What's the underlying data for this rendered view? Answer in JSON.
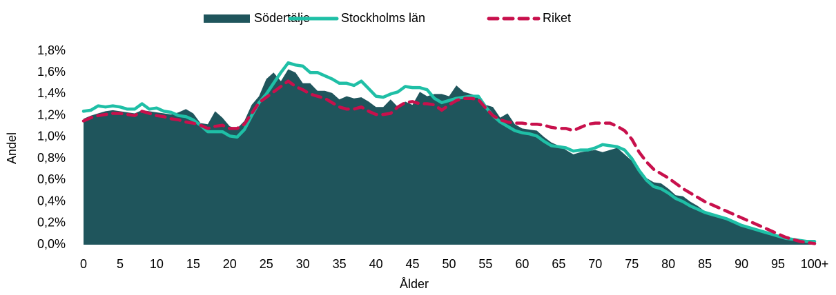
{
  "chart_data": {
    "type": "line",
    "x_label": "Ålder",
    "y_label": "Andel",
    "categories": [
      "0",
      null,
      null,
      null,
      null,
      "5",
      null,
      null,
      null,
      null,
      "10",
      null,
      null,
      null,
      null,
      "15",
      null,
      null,
      null,
      null,
      "20",
      null,
      null,
      null,
      null,
      "25",
      null,
      null,
      null,
      null,
      "30",
      null,
      null,
      null,
      null,
      "35",
      null,
      null,
      null,
      null,
      "40",
      null,
      null,
      null,
      null,
      "45",
      null,
      null,
      null,
      null,
      "50",
      null,
      null,
      null,
      null,
      "55",
      null,
      null,
      null,
      null,
      "60",
      null,
      null,
      null,
      null,
      "65",
      null,
      null,
      null,
      null,
      "70",
      null,
      null,
      null,
      null,
      "75",
      null,
      null,
      null,
      null,
      "80",
      null,
      null,
      null,
      null,
      "85",
      null,
      null,
      null,
      null,
      "90",
      null,
      null,
      null,
      null,
      "95",
      null,
      null,
      null,
      null,
      "100+"
    ],
    "ylim": [
      0,
      1.8
    ],
    "yticks": [
      {
        "value": 0,
        "label": "0,0%"
      },
      {
        "value": 0.2,
        "label": "0,2%"
      },
      {
        "value": 0.4,
        "label": "0,4%"
      },
      {
        "value": 0.6,
        "label": "0,6%"
      },
      {
        "value": 0.8,
        "label": "0,8%"
      },
      {
        "value": 1.0,
        "label": "1,0%"
      },
      {
        "value": 1.2,
        "label": "1,2%"
      },
      {
        "value": 1.4,
        "label": "1,4%"
      },
      {
        "value": 1.6,
        "label": "1,6%"
      },
      {
        "value": 1.8,
        "label": "1,8%"
      }
    ],
    "grid": false,
    "legend": "top",
    "series": [
      {
        "name": "Södertälje",
        "style": "area",
        "color": "#1f555c",
        "values": [
          1.17,
          1.2,
          1.22,
          1.24,
          1.25,
          1.24,
          1.23,
          1.22,
          1.25,
          1.24,
          1.23,
          1.22,
          1.21,
          1.23,
          1.26,
          1.22,
          1.13,
          1.12,
          1.24,
          1.18,
          1.1,
          1.08,
          1.15,
          1.3,
          1.38,
          1.54,
          1.6,
          1.52,
          1.63,
          1.6,
          1.5,
          1.5,
          1.43,
          1.43,
          1.41,
          1.35,
          1.38,
          1.36,
          1.37,
          1.33,
          1.28,
          1.28,
          1.35,
          1.28,
          1.33,
          1.3,
          1.42,
          1.38,
          1.4,
          1.4,
          1.38,
          1.48,
          1.42,
          1.4,
          1.38,
          1.3,
          1.28,
          1.18,
          1.22,
          1.12,
          1.08,
          1.07,
          1.06,
          1.0,
          0.95,
          0.92,
          0.88,
          0.84,
          0.86,
          0.87,
          0.88,
          0.86,
          0.88,
          0.9,
          0.84,
          0.78,
          0.7,
          0.62,
          0.58,
          0.57,
          0.52,
          0.46,
          0.45,
          0.4,
          0.36,
          0.31,
          0.28,
          0.26,
          0.24,
          0.21,
          0.18,
          0.15,
          0.13,
          0.11,
          0.09,
          0.07,
          0.05,
          0.04,
          0.03,
          0.02,
          0.02
        ]
      },
      {
        "name": "Stockholms län",
        "style": "solid",
        "color": "#1fbfa6",
        "values": [
          1.24,
          1.25,
          1.29,
          1.28,
          1.29,
          1.28,
          1.26,
          1.26,
          1.31,
          1.26,
          1.27,
          1.24,
          1.23,
          1.2,
          1.19,
          1.16,
          1.11,
          1.05,
          1.05,
          1.05,
          1.01,
          1.0,
          1.07,
          1.2,
          1.32,
          1.4,
          1.5,
          1.6,
          1.69,
          1.67,
          1.66,
          1.6,
          1.6,
          1.57,
          1.54,
          1.5,
          1.5,
          1.48,
          1.52,
          1.45,
          1.38,
          1.37,
          1.4,
          1.42,
          1.47,
          1.46,
          1.46,
          1.44,
          1.36,
          1.32,
          1.34,
          1.36,
          1.37,
          1.38,
          1.38,
          1.28,
          1.2,
          1.14,
          1.1,
          1.06,
          1.04,
          1.03,
          1.01,
          0.96,
          0.92,
          0.91,
          0.9,
          0.87,
          0.88,
          0.88,
          0.9,
          0.93,
          0.92,
          0.91,
          0.88,
          0.8,
          0.69,
          0.6,
          0.54,
          0.52,
          0.48,
          0.43,
          0.4,
          0.36,
          0.33,
          0.3,
          0.28,
          0.26,
          0.24,
          0.21,
          0.18,
          0.16,
          0.14,
          0.12,
          0.1,
          0.08,
          0.06,
          0.05,
          0.04,
          0.03,
          0.03
        ]
      },
      {
        "name": "Riket",
        "style": "dashed",
        "color": "#c8104c",
        "values": [
          1.15,
          1.18,
          1.2,
          1.21,
          1.22,
          1.22,
          1.21,
          1.2,
          1.24,
          1.22,
          1.2,
          1.19,
          1.17,
          1.16,
          1.14,
          1.13,
          1.11,
          1.08,
          1.1,
          1.11,
          1.08,
          1.08,
          1.12,
          1.22,
          1.32,
          1.37,
          1.42,
          1.47,
          1.52,
          1.47,
          1.44,
          1.4,
          1.38,
          1.36,
          1.32,
          1.28,
          1.26,
          1.26,
          1.28,
          1.24,
          1.21,
          1.21,
          1.22,
          1.28,
          1.32,
          1.33,
          1.31,
          1.31,
          1.3,
          1.25,
          1.3,
          1.34,
          1.36,
          1.36,
          1.35,
          1.27,
          1.2,
          1.16,
          1.14,
          1.13,
          1.13,
          1.12,
          1.12,
          1.11,
          1.09,
          1.08,
          1.08,
          1.06,
          1.09,
          1.12,
          1.13,
          1.13,
          1.13,
          1.1,
          1.06,
          0.98,
          0.86,
          0.77,
          0.7,
          0.66,
          0.62,
          0.57,
          0.52,
          0.48,
          0.44,
          0.4,
          0.37,
          0.34,
          0.31,
          0.28,
          0.25,
          0.22,
          0.19,
          0.16,
          0.13,
          0.1,
          0.07,
          0.05,
          0.03,
          0.02,
          0.01
        ]
      }
    ]
  }
}
